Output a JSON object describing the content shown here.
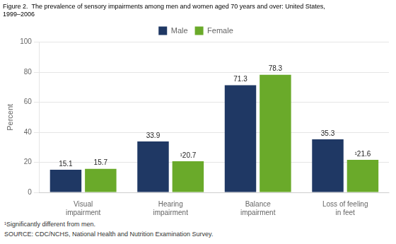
{
  "chart_data": {
    "type": "bar",
    "title": [
      "Figure 2.  The prevalence of sensory impairments among men and women aged 70 years and over: United States,",
      "1999–2006"
    ],
    "categories": [
      "Visual\nimpairment",
      "Hearing\nimpairment",
      "Balance\nimpairment",
      "Loss of feeling\nin feet"
    ],
    "series": [
      {
        "name": "Male",
        "color": "#1f3864",
        "values": [
          15.1,
          33.9,
          71.3,
          35.3
        ]
      },
      {
        "name": "Female",
        "color": "#6aaa2a",
        "values": [
          15.7,
          20.7,
          78.3,
          21.6
        ],
        "value_labels": [
          "15.7",
          "¹20.7",
          "78.3",
          "¹21.6"
        ]
      }
    ],
    "ylabel": "Percent",
    "ylim": [
      0,
      100
    ],
    "yticks": [
      0,
      20,
      40,
      60,
      80,
      100
    ],
    "grid": true,
    "legend": "top",
    "data_labels": true,
    "footnote": "¹Significantly different from men.",
    "source": "SOURCE: CDC/NCHS, National Health and Nutrition Examination Survey."
  }
}
